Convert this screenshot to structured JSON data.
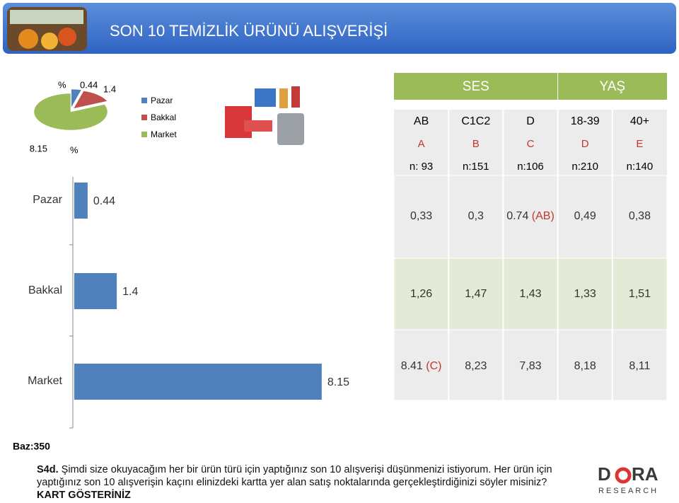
{
  "header": {
    "title": "SON 10 TEMİZLİK ÜRÜNÜ ALIŞVERİŞİ"
  },
  "chart_data": [
    {
      "type": "pie",
      "categories": [
        "Pazar",
        "Bakkal",
        "Market"
      ],
      "values": [
        0.44,
        1.4,
        8.15
      ],
      "colors": [
        "#4f81bd",
        "#c0504d",
        "#9bbb59"
      ],
      "unit_marks": [
        "%",
        "%"
      ],
      "legend": "right"
    },
    {
      "type": "hbar",
      "categories": [
        "Pazar",
        "Bakkal",
        "Market"
      ],
      "values": [
        0.44,
        1.4,
        8.15
      ],
      "color": "#4f81bd",
      "xlim": [
        0,
        8.2
      ]
    }
  ],
  "table": {
    "groups": [
      "SES",
      "YAŞ"
    ],
    "columns": [
      "AB",
      "C1C2",
      "D",
      "18-39",
      "40+"
    ],
    "letters": [
      "A",
      "B",
      "C",
      "D",
      "E"
    ],
    "bases": [
      "n: 93",
      "n:151",
      "n:106",
      "n:210",
      "n:140"
    ],
    "rows": [
      [
        "0,33",
        "0,3",
        {
          "value": "0.74",
          "sig": "(AB)"
        },
        "0,49",
        "0,38"
      ],
      [
        "1,26",
        "1,47",
        "1,43",
        "1,33",
        "1,51"
      ],
      [
        {
          "value": "8.41",
          "sig": "(C)"
        },
        "8,23",
        "7,83",
        "8,18",
        "8,11"
      ]
    ]
  },
  "footer": {
    "base": "Baz:350",
    "code": "S4d.",
    "question": "Şimdi size okuyacağım her bir ürün türü için yaptığınız son 10 alışverişi düşünmenizi istiyorum. Her ürün için yaptığınız son 10 alışverişin kaçını elinizdeki kartta yer alan satış noktalarında gerçekleştirdiğinizi söyler misiniz?",
    "instruction": "KART GÖSTERİNİZ"
  },
  "logo": {
    "left": "D",
    "right": "RA",
    "sub": "RESEARCH"
  }
}
